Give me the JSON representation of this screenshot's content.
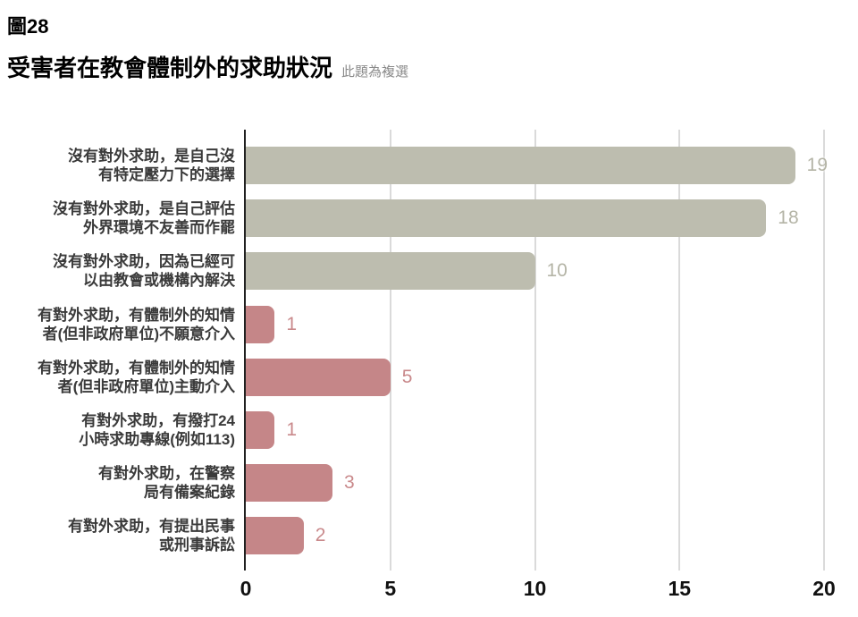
{
  "page": {
    "figure_label": "圖28",
    "title": "受害者在教會體制外的求助狀況",
    "subtitle_note": "此題為複選"
  },
  "chart_data": {
    "type": "bar",
    "orientation": "horizontal",
    "title": "受害者在教會體制外的求助狀況",
    "note": "此題為複選",
    "categories": [
      [
        "沒有對外求助，是自己沒",
        "有特定壓力下的選擇"
      ],
      [
        "沒有對外求助，是自己評估",
        "外界環境不友善而作罷"
      ],
      [
        "沒有對外求助，因為已經可",
        "以由教會或機構內解決"
      ],
      [
        "有對外求助，有體制外的知情",
        "者(但非政府單位)不願意介入"
      ],
      [
        "有對外求助，有體制外的知情",
        "者(但非政府單位)主動介入"
      ],
      [
        "有對外求助，有撥打24",
        "小時求助專線(例如113)"
      ],
      [
        "有對外求助，在警察",
        "局有備案紀錄"
      ],
      [
        "有對外求助，有提出民事",
        "或刑事訴訟"
      ]
    ],
    "values": [
      19,
      18,
      10,
      1,
      5,
      1,
      3,
      2
    ],
    "bar_colors": [
      "#bdbdaf",
      "#bdbdaf",
      "#bdbdaf",
      "#c58688",
      "#c58688",
      "#c58688",
      "#c58688",
      "#c58688"
    ],
    "value_label_colors": [
      "#b4b4a6",
      "#b4b4a6",
      "#b4b4a6",
      "#c9898b",
      "#c9898b",
      "#c9898b",
      "#c9898b",
      "#c9898b"
    ],
    "xlabel": "",
    "ylabel": "",
    "xlim": [
      0,
      20
    ],
    "x_ticks": [
      0,
      5,
      10,
      15,
      20
    ],
    "grid": true,
    "legend": false,
    "colors": {
      "group_no_external_help": "#bdbdaf",
      "group_sought_help": "#c58688",
      "gridline": "#dadada",
      "axis_line": "#212121",
      "category_text": "#3a3a3a",
      "tick_text": "#111111",
      "note_text": "#8a8a8a"
    }
  }
}
